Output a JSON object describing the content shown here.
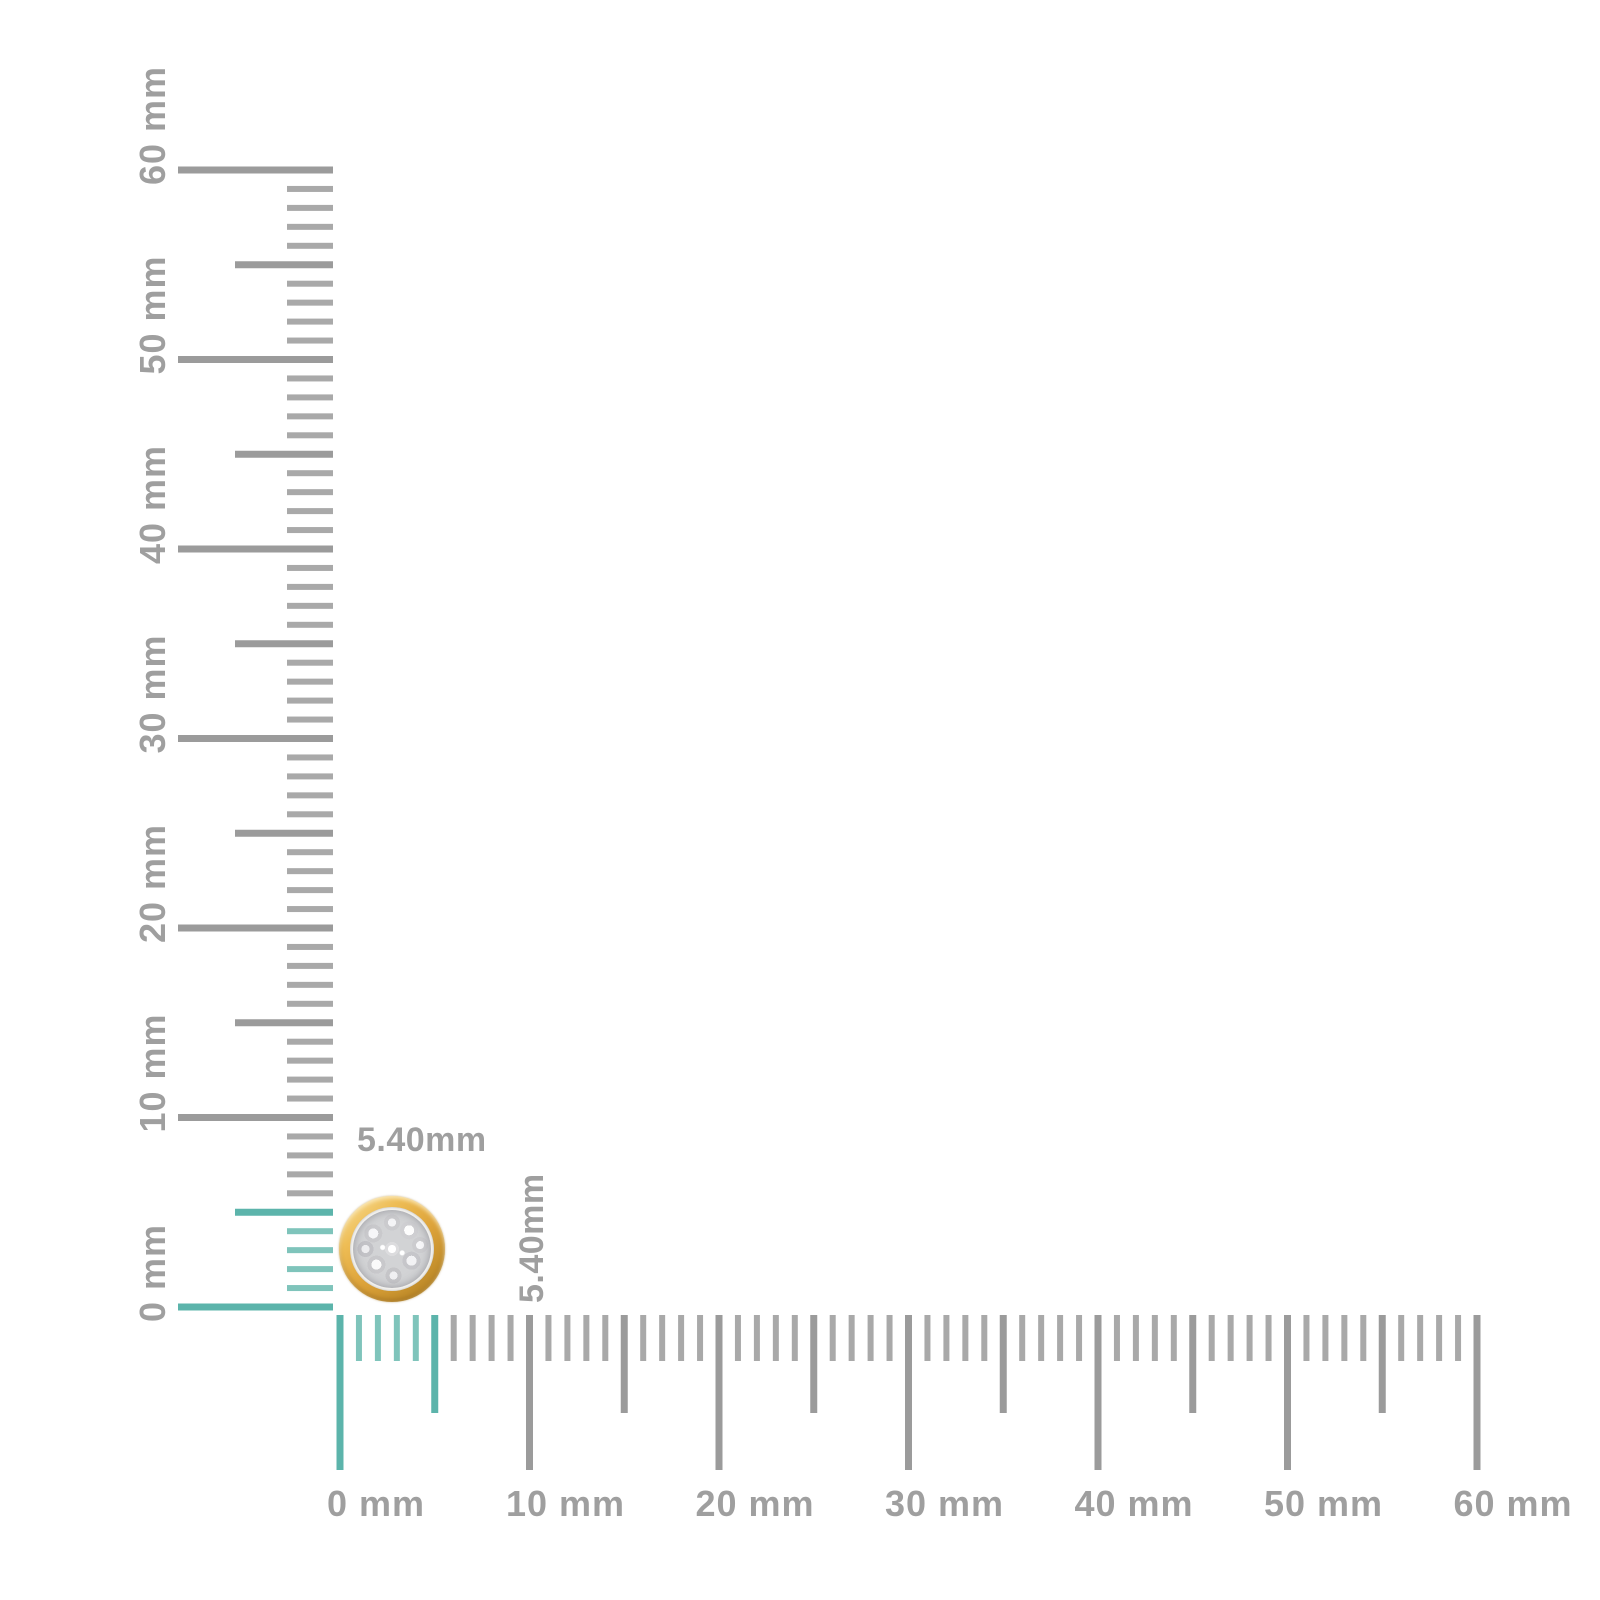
{
  "scene": {
    "background": "#ffffff",
    "unit": "mm"
  },
  "item": {
    "name": "gold bezel pave diamond cluster stud",
    "diameter_mm": 5.4
  },
  "dimensions": {
    "width_label": "5.40mm",
    "height_label": "5.40mm"
  },
  "rulers": {
    "min_mm": 0,
    "max_mm": 60,
    "major_step_mm": 10,
    "half_step_mm": 5,
    "minor_step_mm": 1,
    "highlight_extent_mm": 5.4,
    "vertical": {
      "labels": [
        "0 mm",
        "10 mm",
        "20 mm",
        "30 mm",
        "40 mm",
        "50 mm",
        "60 mm"
      ]
    },
    "horizontal": {
      "labels": [
        "0 mm",
        "10 mm",
        "20 mm",
        "30 mm",
        "40 mm",
        "50 mm",
        "60 mm"
      ]
    }
  },
  "colors": {
    "background": "#ffffff",
    "tick_major": "#9b9b9b",
    "tick_minor": "#a9a9a9",
    "tick_highlight_strong": "#5cb4ab",
    "tick_highlight": "#7fc4bb",
    "label_text": "#9f9f9f",
    "dimension_text": "#9f9f9f",
    "gold_light": "#f7dd96",
    "gold": "#dda33a",
    "gold_dark": "#c08c2a",
    "pave_base": "#d2d3d5",
    "pave_rim": "#f2f1ee"
  }
}
